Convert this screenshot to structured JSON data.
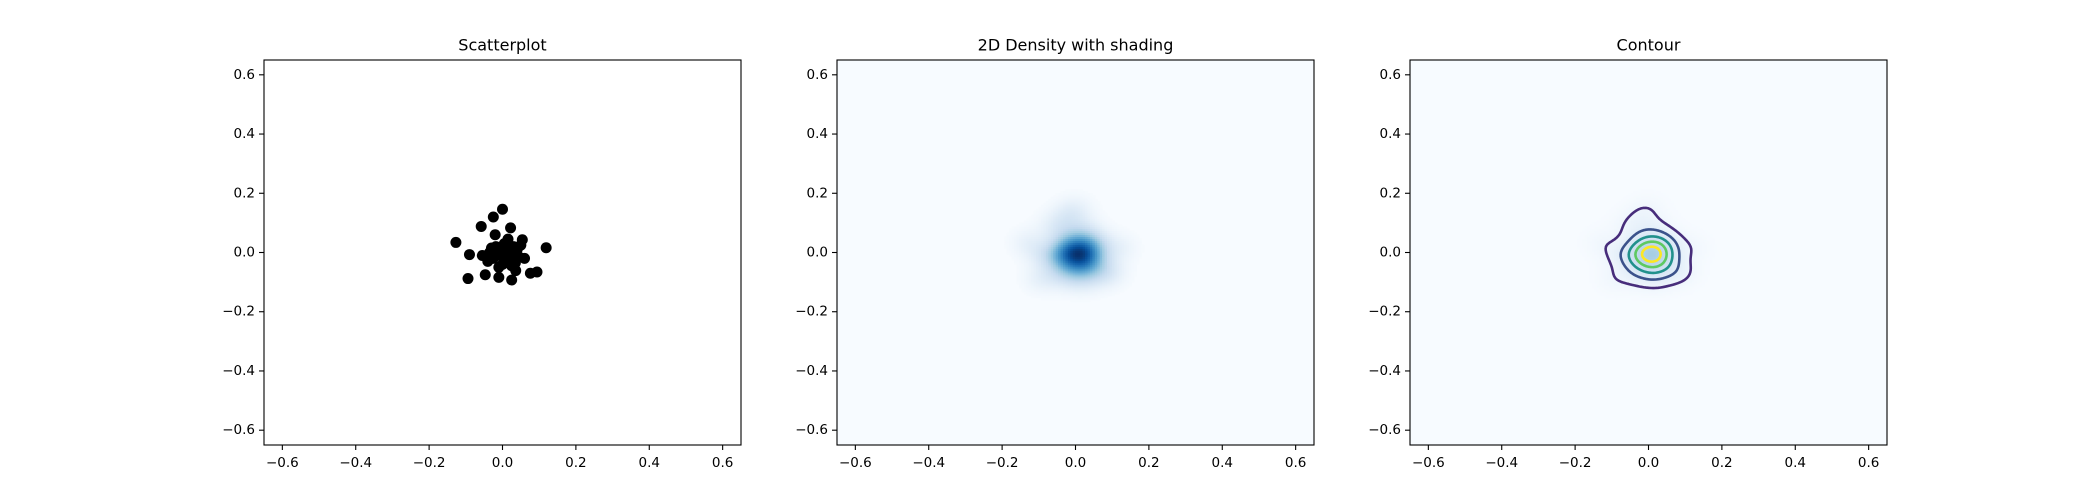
{
  "chart_data": [
    {
      "type": "scatter",
      "title": "Scatterplot",
      "color": "#000000",
      "x": [
        0,
        -0.025,
        -0.058,
        0.022,
        -0.127,
        -0.02,
        0.054,
        0.119,
        -0.09,
        -0.094,
        -0.047,
        -0.01,
        0.025,
        0.036,
        0.076,
        0.094,
        -0.03,
        -0.015,
        0.005,
        0.015,
        0.03,
        -0.04,
        -0.005,
        0.01,
        0.02,
        0.045,
        -0.025,
        0.0,
        0.06,
        0.035,
        -0.055,
        0.012,
        -0.018,
        0.04,
        0.025,
        -0.035,
        0.008,
        0.05,
        -0.01,
        0.02
      ],
      "y": [
        0.146,
        0.12,
        0.088,
        0.083,
        0.034,
        0.06,
        0.043,
        0.016,
        -0.007,
        -0.088,
        -0.075,
        -0.084,
        -0.093,
        -0.061,
        -0.07,
        -0.066,
        0.015,
        0.005,
        0.03,
        0.045,
        0.02,
        -0.03,
        -0.01,
        -0.025,
        0.0,
        -0.015,
        -0.02,
        -0.04,
        -0.02,
        -0.035,
        -0.01,
        0.01,
        0.02,
        0.01,
        -0.045,
        0.0,
        -0.005,
        0.025,
        -0.05,
        -0.01
      ],
      "xlim": [
        -0.65,
        0.65
      ],
      "ylim": [
        -0.65,
        0.65
      ],
      "xticks": [
        {
          "value": -0.6,
          "label": "−0.6"
        },
        {
          "value": -0.4,
          "label": "−0.4"
        },
        {
          "value": -0.2,
          "label": "−0.2"
        },
        {
          "value": 0,
          "label": "0.0"
        },
        0.2,
        0.4,
        0.6
      ],
      "yticks": [
        {
          "value": -0.6,
          "label": "−0.6"
        },
        {
          "value": -0.4,
          "label": "−0.4"
        },
        {
          "value": -0.2,
          "label": "−0.2"
        },
        {
          "value": 0,
          "label": "0.0"
        },
        0.2,
        0.4,
        0.6
      ]
    },
    {
      "type": "density",
      "title": "2D Density with shading",
      "colormap": "Blues",
      "xlim": [
        -0.65,
        0.65
      ],
      "ylim": [
        -0.65,
        0.65
      ],
      "xticks": [
        {
          "value": -0.6,
          "label": "−0.6"
        },
        {
          "value": -0.4,
          "label": "−0.4"
        },
        {
          "value": -0.2,
          "label": "−0.2"
        },
        {
          "value": 0,
          "label": "0.0"
        },
        0.2,
        0.4,
        0.6
      ],
      "yticks": [
        {
          "value": -0.6,
          "label": "−0.6"
        },
        {
          "value": -0.4,
          "label": "−0.4"
        },
        {
          "value": -0.2,
          "label": "−0.2"
        },
        {
          "value": 0,
          "label": "0.0"
        },
        0.2,
        0.4,
        0.6
      ]
    },
    {
      "type": "contour",
      "title": "Contour",
      "colormap": "Blues",
      "contour_colormap": "viridis",
      "xlim": [
        -0.65,
        0.65
      ],
      "ylim": [
        -0.65,
        0.65
      ],
      "xticks": [
        {
          "value": -0.6,
          "label": "−0.6"
        },
        {
          "value": -0.4,
          "label": "−0.4"
        },
        {
          "value": -0.2,
          "label": "−0.2"
        },
        {
          "value": 0,
          "label": "0.0"
        },
        0.2,
        0.4,
        0.6
      ],
      "yticks": [
        {
          "value": -0.6,
          "label": "−0.6"
        },
        {
          "value": -0.4,
          "label": "−0.4"
        },
        {
          "value": -0.2,
          "label": "−0.2"
        },
        {
          "value": 0,
          "label": "0.0"
        },
        0.2,
        0.4,
        0.6
      ]
    }
  ]
}
